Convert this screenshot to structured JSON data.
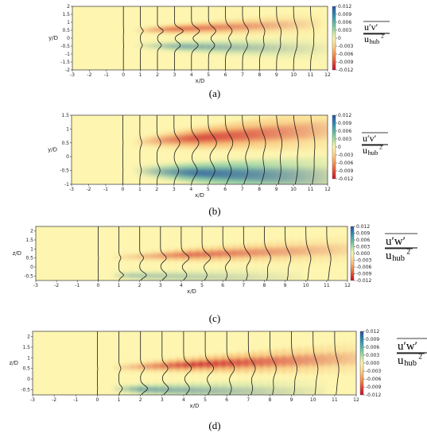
{
  "figure": {
    "panels": [
      {
        "id": "a",
        "caption": "(a)",
        "plane": "horizontal",
        "yaxis_label": "y/D",
        "xaxis_label": "x/D",
        "cbar_label": {
          "num": "u′v′",
          "den_base": "u",
          "den_sub": "hub",
          "den_sup": "2"
        },
        "cbar_ticks": [
          "0.012",
          "0.009",
          "0.006",
          "0.003",
          "0",
          "-0.003",
          "-0.006",
          "-0.009",
          "-0.012"
        ]
      },
      {
        "id": "b",
        "caption": "(b)",
        "plane": "horizontal",
        "yaxis_label": "y/D",
        "xaxis_label": "x/D",
        "cbar_label": {
          "num": "u′v′",
          "den_base": "u",
          "den_sub": "hub",
          "den_sup": "2"
        },
        "cbar_ticks": [
          "0.012",
          "0.009",
          "0.006",
          "0.003",
          "0",
          "-0.003",
          "-0.006",
          "-0.009",
          "-0.012"
        ]
      },
      {
        "id": "c",
        "caption": "(c)",
        "plane": "vertical",
        "yaxis_label": "z/D",
        "xaxis_label": "x/D",
        "cbar_label": {
          "num": "u′w′",
          "den_base": "u",
          "den_sub": "hub",
          "den_sup": "2"
        },
        "cbar_ticks": [
          "0.012",
          "0.009",
          "0.006",
          "0.003",
          "0.000",
          "-0.003",
          "-0.006",
          "-0.009",
          "-0.012"
        ]
      },
      {
        "id": "d",
        "caption": "(d)",
        "plane": "vertical",
        "yaxis_label": "z/D",
        "xaxis_label": "x/D",
        "cbar_label": {
          "num": "u′w′",
          "den_base": "u",
          "den_sub": "hub",
          "den_sup": "2"
        },
        "cbar_ticks": [
          "0.012",
          "0.009",
          "0.006",
          "0.003",
          "0.000",
          "-0.003",
          "-0.006",
          "-0.009",
          "-0.012"
        ]
      }
    ],
    "colors": {
      "positive_max": "#2c4f9e",
      "zero": "#fdf5b0",
      "negative_max": "#c7102a"
    }
  },
  "chart_data": [
    {
      "type": "heatmap",
      "panel": "a",
      "xlabel": "x/D",
      "ylabel": "y/D",
      "xlim": [
        -3,
        12
      ],
      "ylim": [
        -2,
        2
      ],
      "xticks": [
        -3,
        -2,
        -1,
        0,
        1,
        2,
        3,
        4,
        5,
        6,
        7,
        8,
        9,
        10,
        11,
        12
      ],
      "yticks": [
        -2,
        -1.5,
        -1,
        -0.5,
        0,
        0.5,
        1,
        1.5,
        2
      ],
      "color_range": [
        -0.012,
        0.012
      ],
      "profile_stations_xD": [
        0,
        1,
        2,
        3,
        4,
        5,
        6,
        7,
        8,
        9,
        10,
        11
      ],
      "lobes": [
        {
          "sign": "negative",
          "center": 0.45,
          "peak": -0.006,
          "x_peak": 3.0
        },
        {
          "sign": "positive",
          "center": -0.45,
          "peak": 0.004,
          "x_peak": 3.5
        }
      ]
    },
    {
      "type": "heatmap",
      "panel": "b",
      "xlabel": "x/D",
      "ylabel": "y/D",
      "xlim": [
        -3,
        12
      ],
      "ylim": [
        -1,
        1.5
      ],
      "xticks": [
        -3,
        -2,
        -1,
        0,
        1,
        2,
        3,
        4,
        5,
        6,
        7,
        8,
        9,
        10,
        11,
        12
      ],
      "yticks": [
        -1,
        -0.5,
        0,
        0.5,
        1,
        1.5
      ],
      "color_range": [
        -0.012,
        0.012
      ],
      "profile_stations_xD": [
        0,
        1,
        2,
        3,
        4,
        5,
        6,
        7,
        8,
        9,
        10,
        11
      ],
      "lobes": [
        {
          "sign": "negative",
          "center": 0.5,
          "peak": -0.008,
          "x_peak": 4.5
        },
        {
          "sign": "positive",
          "center": -0.5,
          "peak": 0.009,
          "x_peak": 4.5
        }
      ]
    },
    {
      "type": "heatmap",
      "panel": "c",
      "xlabel": "x/D",
      "ylabel": "z/D",
      "xlim": [
        -3,
        12
      ],
      "ylim": [
        -0.75,
        2.25
      ],
      "xticks": [
        -3,
        -2,
        -1,
        0,
        1,
        2,
        3,
        4,
        5,
        6,
        7,
        8,
        9,
        10,
        11,
        12
      ],
      "yticks": [
        -0.5,
        0,
        0.5,
        1,
        1.5,
        2
      ],
      "color_range": [
        -0.012,
        0.012
      ],
      "profile_stations_xD": [
        0,
        1,
        2,
        3,
        4,
        5,
        6,
        7,
        8,
        9,
        10,
        11
      ],
      "lobes": [
        {
          "sign": "negative",
          "center": 0.5,
          "peak": -0.006,
          "x_peak": 4.5
        },
        {
          "sign": "positive",
          "center": -0.45,
          "peak": 0.003,
          "x_peak": 1.5
        }
      ]
    },
    {
      "type": "heatmap",
      "panel": "d",
      "xlabel": "x/D",
      "ylabel": "z/D",
      "xlim": [
        -3,
        12
      ],
      "ylim": [
        -0.75,
        2.25
      ],
      "xticks": [
        -3,
        -2,
        -1,
        0,
        1,
        2,
        3,
        4,
        5,
        6,
        7,
        8,
        9,
        10,
        11,
        12
      ],
      "yticks": [
        -0.5,
        0,
        0.5,
        1,
        1.5,
        2
      ],
      "color_range": [
        -0.012,
        0.012
      ],
      "profile_stations_xD": [
        0,
        1,
        2,
        3,
        4,
        5,
        6,
        7,
        8,
        9,
        10,
        11
      ],
      "lobes": [
        {
          "sign": "negative",
          "center": 0.5,
          "peak": -0.009,
          "x_peak": 4.5
        },
        {
          "sign": "positive",
          "center": -0.45,
          "peak": 0.005,
          "x_peak": 2.0
        }
      ]
    }
  ]
}
